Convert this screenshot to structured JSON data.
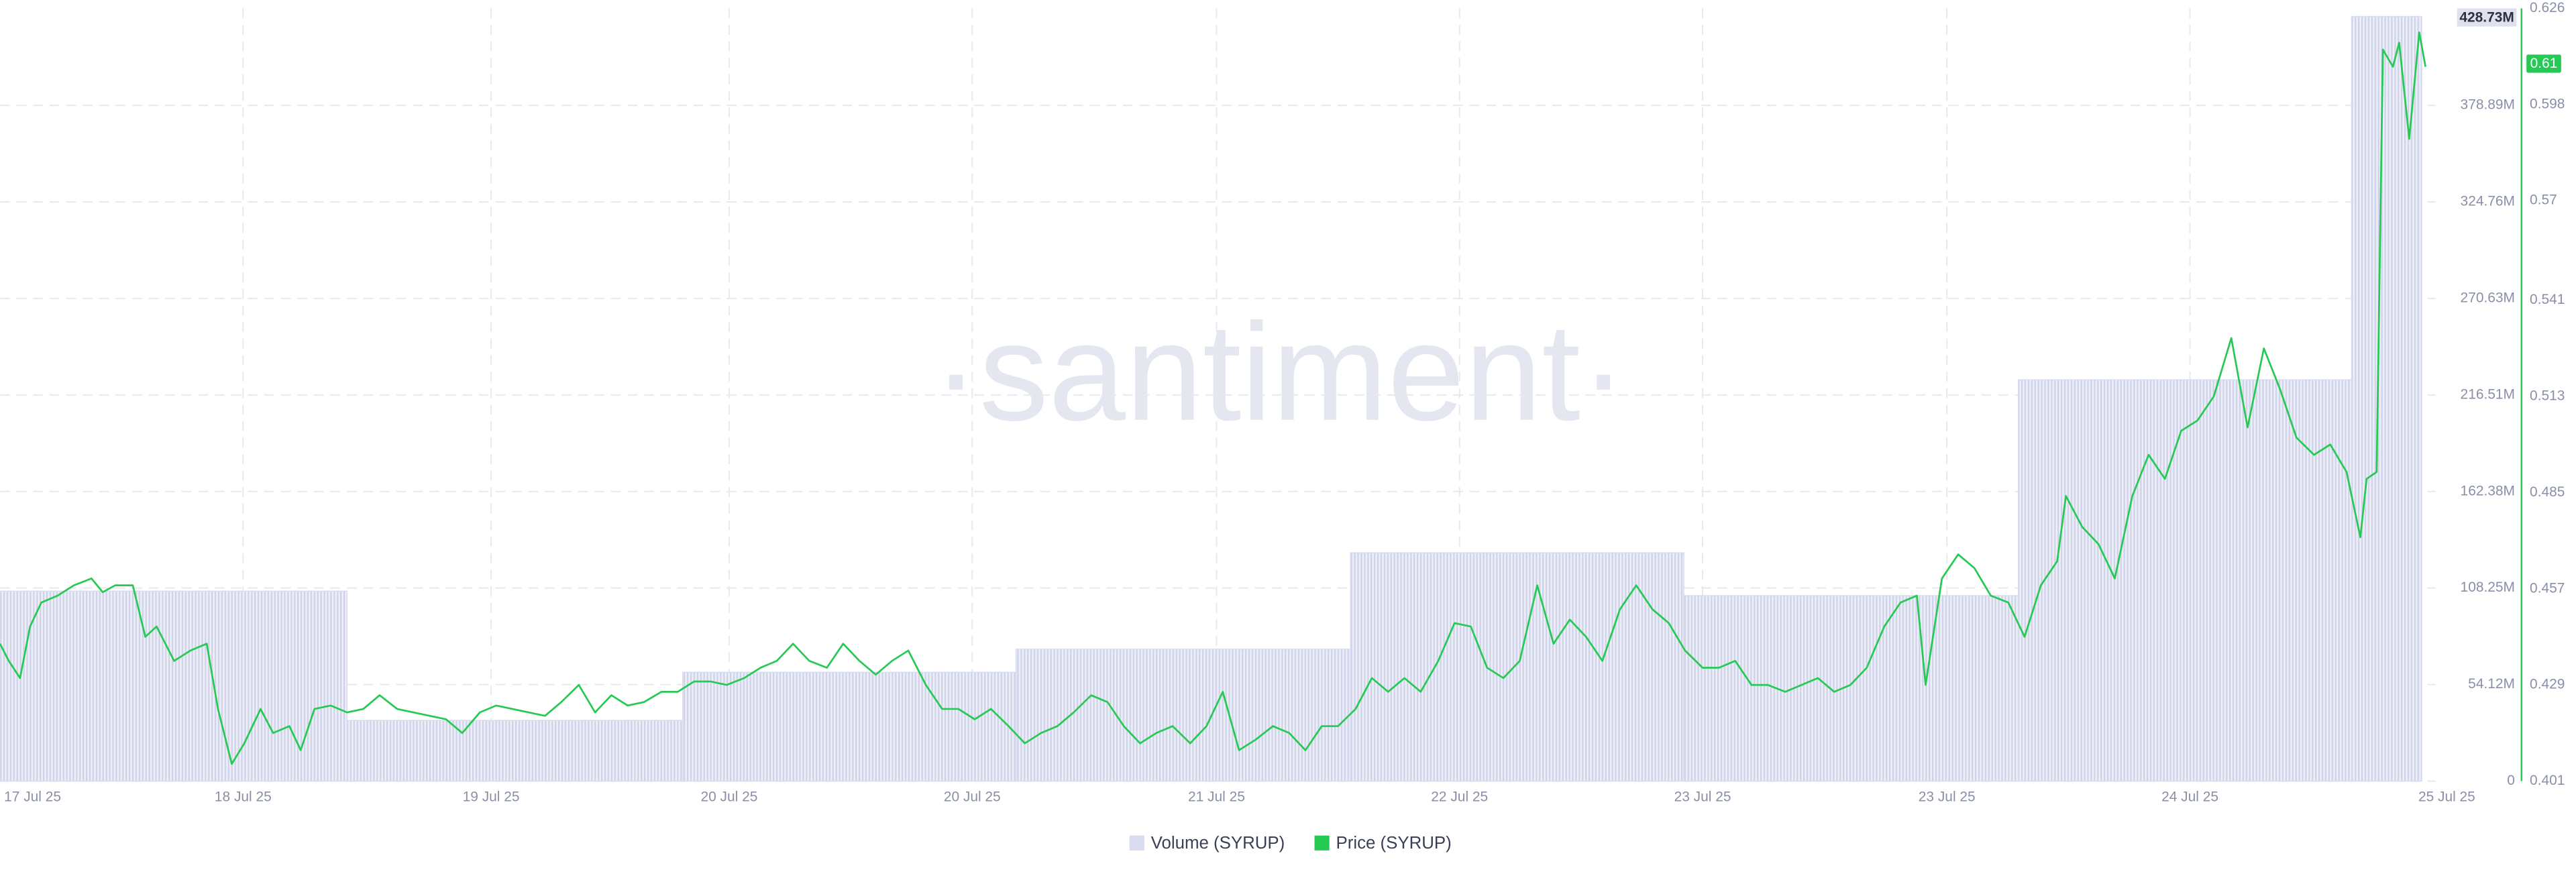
{
  "chart_data": {
    "type": "combo",
    "watermark": "·santiment·",
    "xlim": [
      0,
      201
    ],
    "xticks": [
      {
        "value": 2.6,
        "label": "17 Jul 25"
      },
      {
        "value": 19.4,
        "label": "18 Jul 25"
      },
      {
        "value": 39.2,
        "label": "19 Jul 25"
      },
      {
        "value": 58.2,
        "label": "20 Jul 25"
      },
      {
        "value": 77.6,
        "label": "20 Jul 25"
      },
      {
        "value": 97.1,
        "label": "21 Jul 25"
      },
      {
        "value": 116.5,
        "label": "22 Jul 25"
      },
      {
        "value": 135.9,
        "label": "23 Jul 25"
      },
      {
        "value": 155.4,
        "label": "23 Jul 25"
      },
      {
        "value": 174.8,
        "label": "24 Jul 25"
      },
      {
        "value": 195.3,
        "label": "25 Jul 25"
      }
    ],
    "ylim": [
      0,
      433300000
    ],
    "yticks": [
      0,
      {
        "value": 54120000,
        "label": "54.12M"
      },
      {
        "value": 108250000,
        "label": "108.25M"
      },
      {
        "value": 162380000,
        "label": "162.38M"
      },
      {
        "value": 216510000,
        "label": "216.51M"
      },
      {
        "value": 270630000,
        "label": "270.63M"
      },
      {
        "value": 324760000,
        "label": "324.76M"
      },
      {
        "value": 378890000,
        "label": "378.89M"
      }
    ],
    "y2lim": [
      0.401,
      0.626
    ],
    "y2ticks": [
      0.401,
      0.429,
      0.457,
      0.485,
      0.513,
      0.541,
      0.57,
      0.598,
      0.626
    ],
    "grid": true,
    "series": [
      {
        "name": "Volume (SYRUP)",
        "type": "step-bar",
        "color": "#d9dbee",
        "bins": [
          0,
          27.7,
          54.5,
          81.1,
          107.8,
          134.4,
          161.1,
          187.7,
          193.3
        ],
        "values": [
          106500000,
          34000000,
          61000000,
          74000000,
          128000000,
          104000000,
          225000000,
          428730000
        ],
        "current_label": "428.73M"
      },
      {
        "name": "Price (SYRUP)",
        "type": "line",
        "axis": "y2",
        "color": "#26c953",
        "current_label": "0.61",
        "x": [
          0,
          0.7,
          1.6,
          2.4,
          3.3,
          4.6,
          5.9,
          7.3,
          8.2,
          9.2,
          10.6,
          11.6,
          12.5,
          13.9,
          15.2,
          16.5,
          17.4,
          18.5,
          19.5,
          20.8,
          21.8,
          23.1,
          24.0,
          25.1,
          26.4,
          27.7,
          29.0,
          30.3,
          31.7,
          33.0,
          34.3,
          35.6,
          36.9,
          38.3,
          39.6,
          40.9,
          42.2,
          43.5,
          44.8,
          46.2,
          47.5,
          48.8,
          50.1,
          51.4,
          52.8,
          54.1,
          55.4,
          56.7,
          58.0,
          59.4,
          60.7,
          62.0,
          63.3,
          64.6,
          66.0,
          67.3,
          68.6,
          69.9,
          71.2,
          72.5,
          73.9,
          75.2,
          76.5,
          77.8,
          79.1,
          80.5,
          81.8,
          83.1,
          84.4,
          85.7,
          87.1,
          88.4,
          89.7,
          91.0,
          92.3,
          93.6,
          95.0,
          96.3,
          97.6,
          98.9,
          100.2,
          101.6,
          102.9,
          104.2,
          105.5,
          106.8,
          108.2,
          109.5,
          110.8,
          112.1,
          113.4,
          114.8,
          116.1,
          117.4,
          118.7,
          120.0,
          121.3,
          122.7,
          124.0,
          125.3,
          126.6,
          127.9,
          129.3,
          130.6,
          131.9,
          133.2,
          134.5,
          135.9,
          137.2,
          138.5,
          139.8,
          141.1,
          142.5,
          143.8,
          145.1,
          146.4,
          147.7,
          149.0,
          150.4,
          151.7,
          153.0,
          153.7,
          155.0,
          156.3,
          157.6,
          158.9,
          160.3,
          161.6,
          162.9,
          164.2,
          164.9,
          166.2,
          167.5,
          168.8,
          170.2,
          171.5,
          172.8,
          174.1,
          175.4,
          176.7,
          178.1,
          179.4,
          180.7,
          182.0,
          183.3,
          184.7,
          186.0,
          187.3,
          188.4,
          188.9,
          189.7,
          190.2,
          191.0,
          191.5,
          192.3,
          193.1,
          193.6
        ],
        "values": [
          0.441,
          0.436,
          0.431,
          0.446,
          0.453,
          0.455,
          0.458,
          0.46,
          0.456,
          0.458,
          0.458,
          0.443,
          0.446,
          0.436,
          0.439,
          0.441,
          0.422,
          0.406,
          0.412,
          0.422,
          0.415,
          0.417,
          0.41,
          0.422,
          0.423,
          0.421,
          0.422,
          0.426,
          0.422,
          0.421,
          0.42,
          0.419,
          0.415,
          0.421,
          0.423,
          0.422,
          0.421,
          0.42,
          0.424,
          0.429,
          0.421,
          0.426,
          0.423,
          0.424,
          0.427,
          0.427,
          0.43,
          0.43,
          0.429,
          0.431,
          0.434,
          0.436,
          0.441,
          0.436,
          0.434,
          0.441,
          0.436,
          0.432,
          0.436,
          0.439,
          0.429,
          0.422,
          0.422,
          0.419,
          0.422,
          0.417,
          0.412,
          0.415,
          0.417,
          0.421,
          0.426,
          0.424,
          0.417,
          0.412,
          0.415,
          0.417,
          0.412,
          0.417,
          0.427,
          0.41,
          0.413,
          0.417,
          0.415,
          0.41,
          0.417,
          0.417,
          0.422,
          0.431,
          0.427,
          0.431,
          0.427,
          0.436,
          0.447,
          0.446,
          0.434,
          0.431,
          0.436,
          0.458,
          0.441,
          0.448,
          0.443,
          0.436,
          0.451,
          0.458,
          0.451,
          0.447,
          0.439,
          0.434,
          0.434,
          0.436,
          0.429,
          0.429,
          0.427,
          0.429,
          0.431,
          0.427,
          0.429,
          0.434,
          0.446,
          0.453,
          0.455,
          0.429,
          0.46,
          0.467,
          0.463,
          0.455,
          0.453,
          0.443,
          0.458,
          0.465,
          0.484,
          0.475,
          0.47,
          0.46,
          0.484,
          0.496,
          0.489,
          0.503,
          0.506,
          0.513,
          0.53,
          0.504,
          0.527,
          0.515,
          0.501,
          0.496,
          0.499,
          0.491,
          0.472,
          0.489,
          0.491,
          0.614,
          0.609,
          0.616,
          0.588,
          0.619,
          0.609
        ]
      }
    ]
  }
}
